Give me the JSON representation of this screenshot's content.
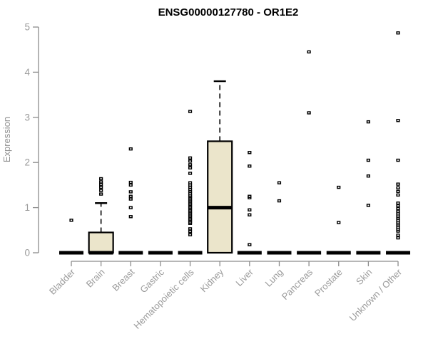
{
  "chart_data": {
    "type": "boxplot",
    "title": "ENSG00000127780 - OR1E2",
    "ylabel": "Expression",
    "xlabel": "",
    "ylim": [
      0,
      5
    ],
    "yticks": [
      0,
      1,
      2,
      3,
      4,
      5
    ],
    "grid": false,
    "legend": null,
    "colors": {
      "box_fill": "#EBE5CB",
      "box_stroke": "#000000",
      "median": "#000000",
      "axis_line": "#8C8C8C",
      "tick_label": "#9A9A9A",
      "title": "#000000",
      "outlier": "#000000"
    },
    "categories": [
      "Bladder",
      "Brain",
      "Breast",
      "Gastric",
      "Hematopoietic cells",
      "Kidney",
      "Liver",
      "Lung",
      "Pancreas",
      "Prostate",
      "Skin",
      "Unknown / Other"
    ],
    "boxes": [
      {
        "q1": 0,
        "median": 0,
        "q3": 0,
        "whisker_low": 0,
        "whisker_high": 0,
        "outliers": [
          0.72
        ]
      },
      {
        "q1": 0,
        "median": 0,
        "q3": 0.45,
        "whisker_low": 0,
        "whisker_high": 1.1,
        "outliers": [
          1.3,
          1.38,
          1.45,
          1.51,
          1.57,
          1.64
        ]
      },
      {
        "q1": 0,
        "median": 0,
        "q3": 0,
        "whisker_low": 0,
        "whisker_high": 0,
        "outliers": [
          0.8,
          1.0,
          1.19,
          1.25,
          1.35,
          1.5,
          1.56,
          2.3
        ]
      },
      {
        "q1": 0,
        "median": 0,
        "q3": 0,
        "whisker_low": 0,
        "whisker_high": 0,
        "outliers": []
      },
      {
        "q1": 0,
        "median": 0,
        "q3": 0,
        "whisker_low": 0,
        "whisker_high": 0,
        "outliers": [
          0.4,
          0.47,
          0.53,
          0.65,
          0.68,
          0.71,
          0.74,
          0.77,
          0.8,
          0.83,
          0.86,
          0.89,
          0.92,
          0.95,
          0.98,
          1.01,
          1.04,
          1.07,
          1.1,
          1.13,
          1.16,
          1.19,
          1.22,
          1.25,
          1.28,
          1.32,
          1.36,
          1.4,
          1.45,
          1.5,
          1.55,
          1.76,
          1.88,
          1.95,
          2.03,
          2.1,
          3.13
        ]
      },
      {
        "q1": 0,
        "median": 1.0,
        "q3": 2.47,
        "whisker_low": 0,
        "whisker_high": 3.8,
        "outliers": []
      },
      {
        "q1": 0,
        "median": 0,
        "q3": 0,
        "whisker_low": 0,
        "whisker_high": 0,
        "outliers": [
          0.18,
          0.84,
          0.95,
          1.22,
          1.25,
          1.92,
          2.22
        ]
      },
      {
        "q1": 0,
        "median": 0,
        "q3": 0,
        "whisker_low": 0,
        "whisker_high": 0,
        "outliers": [
          1.15,
          1.55
        ]
      },
      {
        "q1": 0,
        "median": 0,
        "q3": 0,
        "whisker_low": 0,
        "whisker_high": 0,
        "outliers": [
          3.1,
          4.45
        ]
      },
      {
        "q1": 0,
        "median": 0,
        "q3": 0,
        "whisker_low": 0,
        "whisker_high": 0,
        "outliers": [
          0.67,
          1.45
        ]
      },
      {
        "q1": 0,
        "median": 0,
        "q3": 0,
        "whisker_low": 0,
        "whisker_high": 0,
        "outliers": [
          1.05,
          1.7,
          2.05,
          2.9
        ]
      },
      {
        "q1": 0,
        "median": 0,
        "q3": 0,
        "whisker_low": 0,
        "whisker_high": 0,
        "outliers": [
          0.33,
          0.39,
          0.48,
          0.52,
          0.56,
          0.6,
          0.64,
          0.68,
          0.72,
          0.76,
          0.8,
          0.84,
          0.88,
          0.92,
          0.98,
          1.04,
          1.1,
          1.28,
          1.36,
          1.44,
          1.52,
          2.05,
          2.93,
          4.87
        ]
      }
    ]
  }
}
